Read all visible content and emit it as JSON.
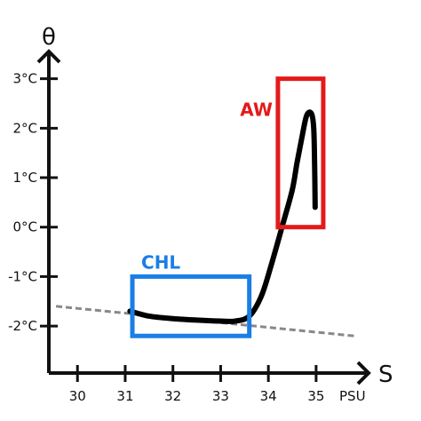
{
  "chart_data": {
    "type": "line",
    "title": "",
    "xlabel": "S",
    "ylabel": "θ",
    "x_unit": "PSU",
    "xlim": [
      29.4,
      36.1
    ],
    "ylim": [
      -2.95,
      3.55
    ],
    "x_ticks": [
      30,
      31,
      32,
      33,
      34,
      35
    ],
    "x_tick_labels": [
      "30",
      "31",
      "32",
      "33",
      "34",
      "35"
    ],
    "y_ticks": [
      -2,
      -1,
      0,
      1,
      2,
      3
    ],
    "y_tick_labels": [
      "-2°C",
      "-1°C",
      "0°C",
      "1°C",
      "2°C",
      "3°C"
    ],
    "grid": false,
    "series": [
      {
        "style": "solid",
        "color": "#000000",
        "points": [
          [
            31.1,
            -1.7
          ],
          [
            31.5,
            -1.8
          ],
          [
            32.0,
            -1.85
          ],
          [
            32.5,
            -1.88
          ],
          [
            33.0,
            -1.9
          ],
          [
            33.3,
            -1.9
          ],
          [
            33.6,
            -1.8
          ],
          [
            33.85,
            -1.4
          ],
          [
            34.05,
            -0.8
          ],
          [
            34.3,
            0.05
          ],
          [
            34.5,
            0.75
          ],
          [
            34.6,
            1.3
          ],
          [
            34.7,
            1.8
          ],
          [
            34.8,
            2.25
          ],
          [
            34.9,
            2.3
          ],
          [
            34.95,
            2.0
          ],
          [
            34.97,
            1.2
          ],
          [
            34.98,
            0.4
          ]
        ]
      },
      {
        "style": "dashed",
        "color": "#888888",
        "points": [
          [
            29.55,
            -1.6
          ],
          [
            35.8,
            -2.2
          ]
        ]
      }
    ],
    "annotations": [
      {
        "label": "CHL",
        "color": "#1a7ee6",
        "x": [
          31.15,
          33.6
        ],
        "y": [
          -2.2,
          -1.0
        ]
      },
      {
        "label": "AW",
        "color": "#e31a1a",
        "x": [
          34.2,
          35.15
        ],
        "y": [
          0.0,
          3.0
        ]
      }
    ]
  }
}
